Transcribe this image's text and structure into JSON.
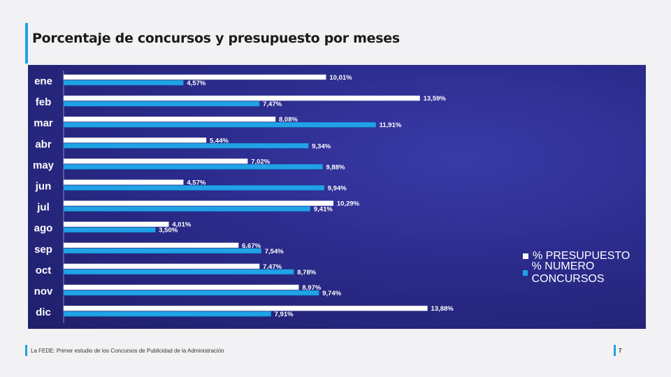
{
  "slide": {
    "title": "Porcentaje de concursos y presupuesto por meses",
    "footer": "La FEDE: Primer estudio de los Concursos de Publicidad de la Administración",
    "page_number": "7"
  },
  "colors": {
    "presupuesto": "#ffffff",
    "concursos": "#1fa3e6",
    "label_text": "#ffffff"
  },
  "chart_data": {
    "type": "bar",
    "orientation": "horizontal",
    "categories": [
      "ene",
      "feb",
      "mar",
      "abr",
      "may",
      "jun",
      "jul",
      "ago",
      "sep",
      "oct",
      "nov",
      "dic"
    ],
    "series": [
      {
        "name": "% PRESUPUESTO",
        "values": [
          10.01,
          13.59,
          8.08,
          5.44,
          7.02,
          4.57,
          10.29,
          4.01,
          6.67,
          7.47,
          8.97,
          13.88
        ],
        "labels": [
          "10,01%",
          "13,59%",
          "8,08%",
          "5,44%",
          "7,02%",
          "4,57%",
          "10,29%",
          "4,01%",
          "6,67%",
          "7,47%",
          "8,97%",
          "13,88%"
        ]
      },
      {
        "name": "% NUMERO CONCURSOS",
        "values": [
          4.57,
          7.47,
          11.91,
          9.34,
          9.88,
          9.94,
          9.41,
          3.5,
          7.54,
          8.78,
          9.74,
          7.91
        ],
        "labels": [
          "4,57%",
          "7,47%",
          "11,91%",
          "9,34%",
          "9,88%",
          "9,94%",
          "9,41%",
          "3,50%",
          "7,54%",
          "8,78%",
          "9,74%",
          "7,91%"
        ]
      }
    ],
    "xlim": [
      0,
      16
    ],
    "legend": "right",
    "grid": false
  }
}
